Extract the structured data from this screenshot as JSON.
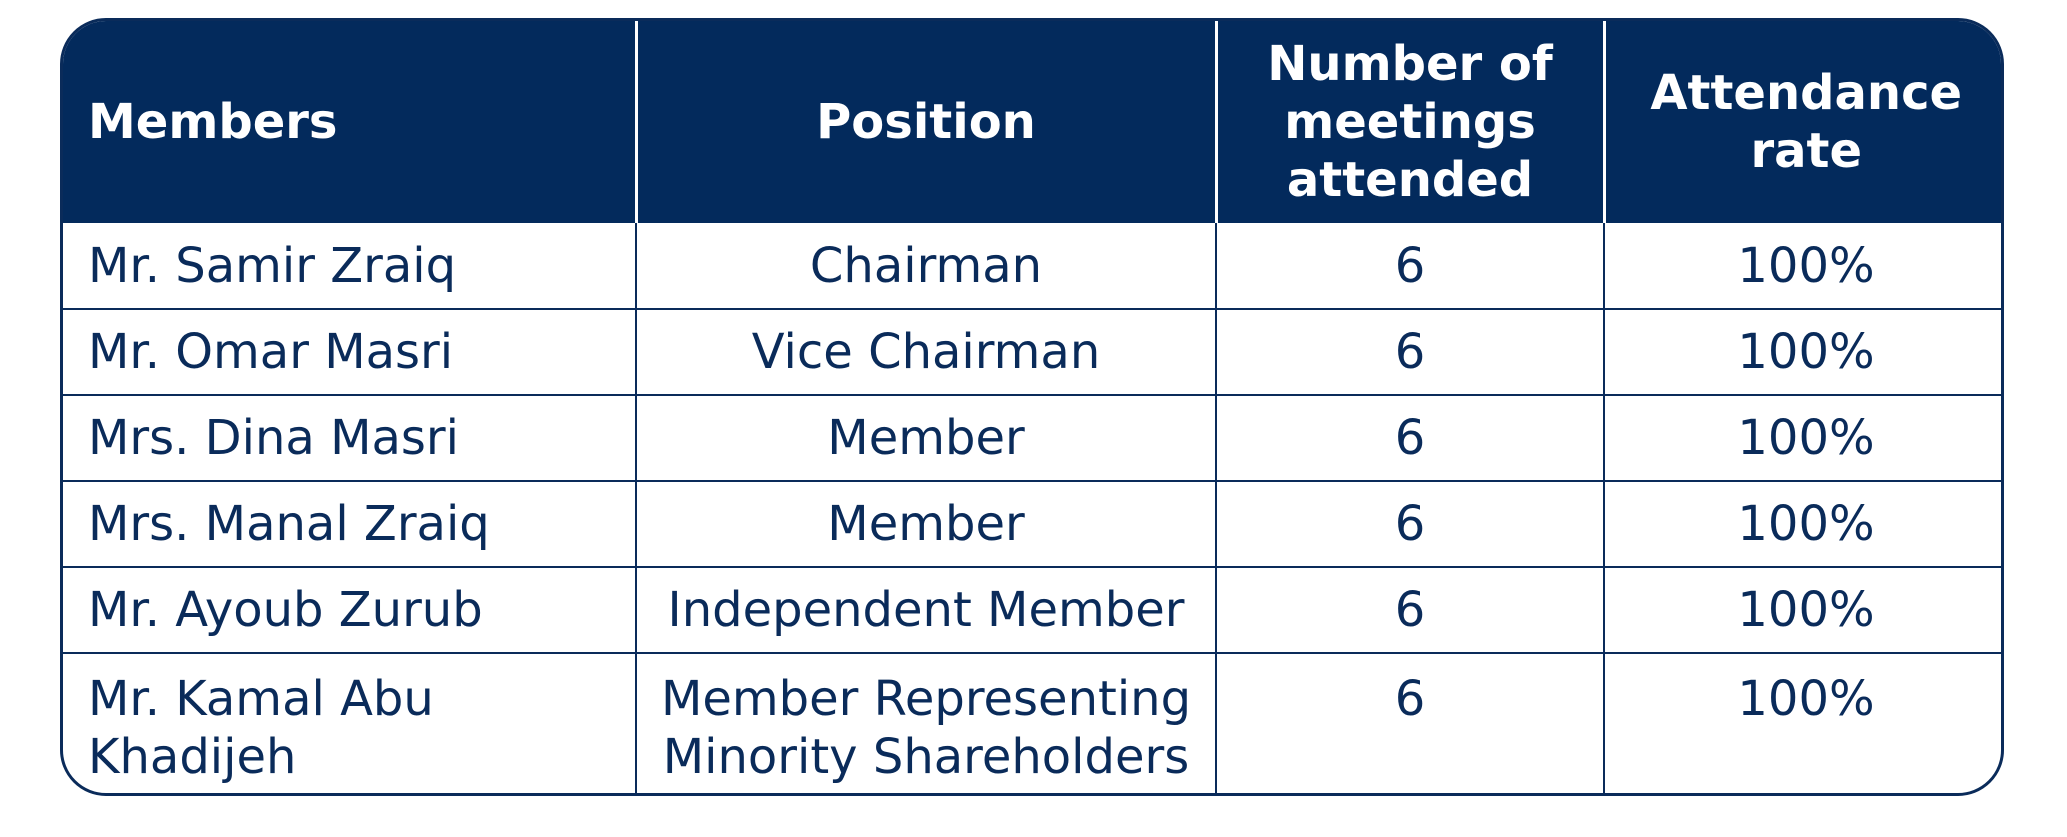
{
  "table": {
    "headers": {
      "members": "Members",
      "position": "Position",
      "meetings_line1": "Number of",
      "meetings_line2": "meetings",
      "meetings_line3": "attended",
      "rate_line1": "Attendance",
      "rate_line2": "rate"
    },
    "rows": [
      {
        "member": "Mr. Samir Zraiq",
        "position": "Chairman",
        "meetings": "6",
        "rate": "100%"
      },
      {
        "member": "Mr. Omar Masri",
        "position": "Vice Chairman",
        "meetings": "6",
        "rate": "100%"
      },
      {
        "member": "Mrs. Dina Masri",
        "position": "Member",
        "meetings": "6",
        "rate": "100%"
      },
      {
        "member": "Mrs. Manal Zraiq",
        "position": "Member",
        "meetings": "6",
        "rate": "100%"
      },
      {
        "member": "Mr. Ayoub Zurub",
        "position": "Independent Member",
        "meetings": "6",
        "rate": "100%"
      },
      {
        "member": "Mr. Kamal Abu Khadijeh",
        "position_line1": "Member Representing",
        "position_line2": "Minority Shareholders",
        "meetings": "6",
        "rate": "100%"
      }
    ]
  },
  "colors": {
    "header_bg": "#032a5c",
    "text": "#0a2b5a",
    "border": "#0a2b5a"
  }
}
